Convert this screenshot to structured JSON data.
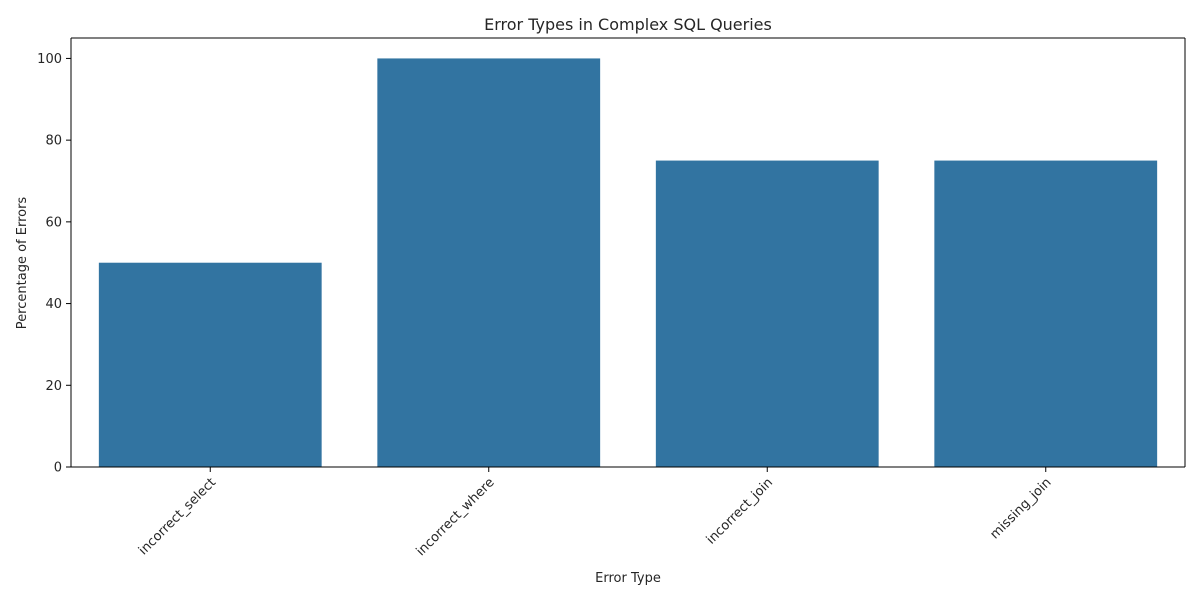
{
  "chart_data": {
    "type": "bar",
    "title": "Error Types in Complex SQL Queries",
    "xlabel": "Error Type",
    "ylabel": "Percentage of Errors",
    "categories": [
      "incorrect_select",
      "incorrect_where",
      "incorrect_join",
      "missing_join"
    ],
    "values": [
      50,
      100,
      75,
      75
    ],
    "ylim": [
      0,
      105
    ],
    "yticks": [
      0,
      20,
      40,
      60,
      80,
      100
    ],
    "bar_color": "#3274a1",
    "grid": false,
    "legend": "none",
    "xtick_rotation": "45"
  }
}
